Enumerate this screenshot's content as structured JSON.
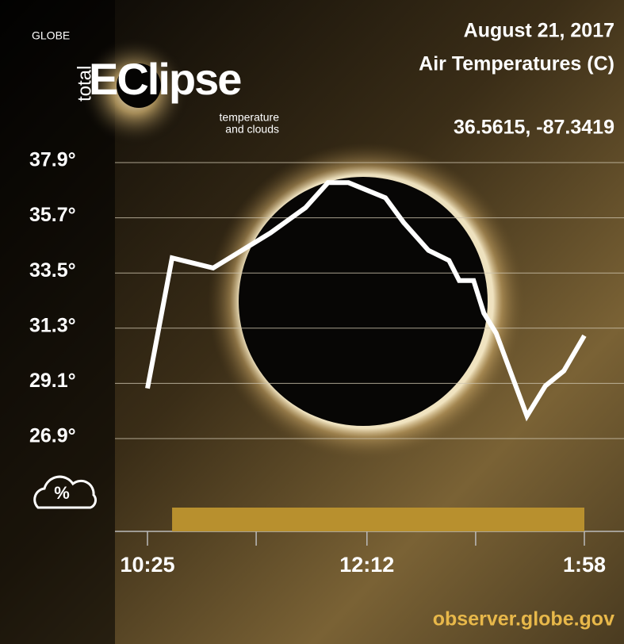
{
  "header": {
    "org": "GLOBE",
    "logo_prefix": "total",
    "logo": "EClipse",
    "tagline_1": "temperature",
    "tagline_2": "and clouds"
  },
  "chart_data": {
    "type": "line",
    "title": "August 21, 2017",
    "subtitle": "Air Temperatures (C)",
    "location": "36.5615, -87.3419",
    "footer": "observer.globe.gov",
    "cloud_icon_label": "%",
    "color": "#ffffff",
    "x": [
      625,
      637,
      657,
      669,
      685,
      702,
      713,
      723,
      741,
      750,
      762,
      772,
      777,
      784,
      789,
      795,
      810,
      819,
      828,
      838
    ],
    "values": [
      28.9,
      34.1,
      33.7,
      34.3,
      35.1,
      36.1,
      37.1,
      37.1,
      36.5,
      35.5,
      34.4,
      34.0,
      33.2,
      33.2,
      31.9,
      31.1,
      27.8,
      29.0,
      29.6,
      31.0
    ],
    "cloud_cover": {
      "x": [
        637,
        838
      ],
      "color": "#b8902e"
    },
    "xlim": [
      625,
      838
    ],
    "xticks": [
      {
        "value": 625,
        "label": "10:25"
      },
      {
        "value": 732,
        "label": "12:12"
      },
      {
        "value": 838,
        "label": "1:58"
      }
    ],
    "xminorticks": [
      678,
      785
    ],
    "ylim": [
      26.9,
      37.9
    ],
    "yticks": [
      {
        "value": 37.9,
        "label": "37.9°"
      },
      {
        "value": 35.7,
        "label": "35.7°"
      },
      {
        "value": 33.5,
        "label": "33.5°"
      },
      {
        "value": 31.3,
        "label": "31.3°"
      },
      {
        "value": 29.1,
        "label": "29.1°"
      },
      {
        "value": 26.9,
        "label": "26.9°"
      }
    ],
    "grid": true
  }
}
